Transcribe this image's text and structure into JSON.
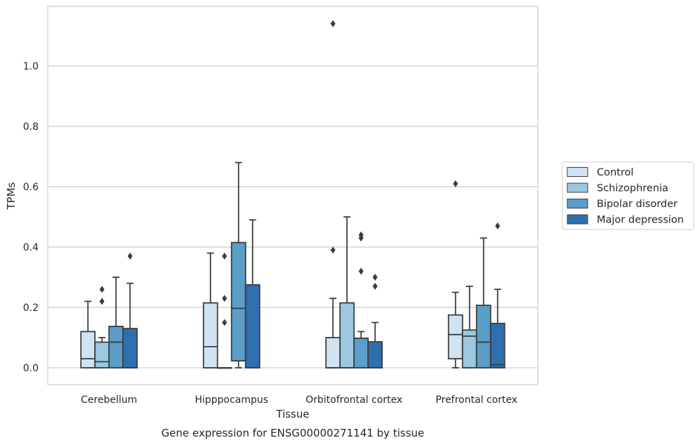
{
  "caption": "Gene expression for ENSG00000271141 by tissue",
  "chart_data": {
    "type": "box",
    "title": "",
    "xlabel": "Tissue",
    "ylabel": "TPMs",
    "ylim": [
      -0.055,
      1.2
    ],
    "yticks": [
      0.0,
      0.2,
      0.4,
      0.6,
      0.8,
      1.0
    ],
    "ytick_labels": [
      "0.0",
      "0.2",
      "0.4",
      "0.6",
      "0.8",
      "1.0"
    ],
    "grid": "horizontal",
    "legend_position": "right",
    "categories": [
      "Cerebellum",
      "Hipppocampus",
      "Orbitofrontal cortex",
      "Prefrontal cortex"
    ],
    "series": [
      {
        "name": "Control",
        "color": "#d1e2f2",
        "boxes": [
          {
            "whislo": 0.0,
            "q1": 0.0,
            "med": 0.03,
            "q3": 0.12,
            "whishi": 0.22,
            "fliers": []
          },
          {
            "whislo": 0.0,
            "q1": 0.0,
            "med": 0.07,
            "q3": 0.215,
            "whishi": 0.38,
            "fliers": []
          },
          {
            "whislo": 0.0,
            "q1": 0.0,
            "med": 0.0,
            "q3": 0.1,
            "whishi": 0.23,
            "fliers": [
              0.39,
              1.14
            ]
          },
          {
            "whislo": 0.0,
            "q1": 0.03,
            "med": 0.11,
            "q3": 0.175,
            "whishi": 0.25,
            "fliers": [
              0.61
            ]
          }
        ]
      },
      {
        "name": "Schizophrenia",
        "color": "#9ac8e0",
        "boxes": [
          {
            "whislo": 0.0,
            "q1": 0.0,
            "med": 0.02,
            "q3": 0.085,
            "whishi": 0.1,
            "fliers": [
              0.22,
              0.26
            ]
          },
          {
            "whislo": 0.0,
            "q1": 0.0,
            "med": 0.0,
            "q3": 0.0,
            "whishi": 0.0,
            "fliers": [
              0.15,
              0.23,
              0.37
            ]
          },
          {
            "whislo": 0.0,
            "q1": 0.0,
            "med": 0.0,
            "q3": 0.215,
            "whishi": 0.5,
            "fliers": []
          },
          {
            "whislo": 0.0,
            "q1": 0.0,
            "med": 0.105,
            "q3": 0.125,
            "whishi": 0.27,
            "fliers": []
          }
        ]
      },
      {
        "name": "Bipolar disorder",
        "color": "#5a9ec9",
        "boxes": [
          {
            "whislo": 0.0,
            "q1": 0.0,
            "med": 0.085,
            "q3": 0.137,
            "whishi": 0.3,
            "fliers": []
          },
          {
            "whislo": 0.0,
            "q1": 0.023,
            "med": 0.197,
            "q3": 0.415,
            "whishi": 0.68,
            "fliers": []
          },
          {
            "whislo": 0.0,
            "q1": 0.0,
            "med": 0.0,
            "q3": 0.098,
            "whishi": 0.12,
            "fliers": [
              0.32,
              0.43,
              0.44
            ]
          },
          {
            "whislo": 0.0,
            "q1": 0.0,
            "med": 0.085,
            "q3": 0.207,
            "whishi": 0.43,
            "fliers": []
          }
        ]
      },
      {
        "name": "Major depression",
        "color": "#2e6fae",
        "boxes": [
          {
            "whislo": 0.0,
            "q1": 0.0,
            "med": 0.0,
            "q3": 0.13,
            "whishi": 0.28,
            "fliers": [
              0.37
            ]
          },
          {
            "whislo": 0.0,
            "q1": 0.0,
            "med": 0.0,
            "q3": 0.275,
            "whishi": 0.49,
            "fliers": []
          },
          {
            "whislo": 0.0,
            "q1": 0.0,
            "med": 0.0,
            "q3": 0.086,
            "whishi": 0.15,
            "fliers": [
              0.27,
              0.3
            ]
          },
          {
            "whislo": 0.0,
            "q1": 0.0,
            "med": 0.01,
            "q3": 0.147,
            "whishi": 0.26,
            "fliers": [
              0.47
            ]
          }
        ]
      }
    ]
  }
}
